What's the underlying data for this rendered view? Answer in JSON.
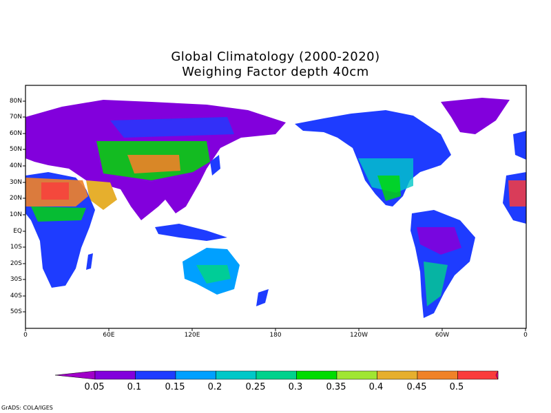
{
  "title_line1": "Global Climatology (2000-2020)",
  "title_line2": "Weighing Factor depth 40cm",
  "credit": "GrADS: COLA/IGES",
  "lat_labels": [
    "80N",
    "70N",
    "60N",
    "50N",
    "40N",
    "30N",
    "20N",
    "10N",
    "EQ",
    "10S",
    "20S",
    "30S",
    "40S",
    "50S"
  ],
  "lon_labels": [
    "0",
    "60E",
    "120E",
    "180",
    "120W",
    "60W",
    "0"
  ],
  "colorbar": {
    "labels": [
      "0.05",
      "0.1",
      "0.15",
      "0.2",
      "0.25",
      "0.3",
      "0.35",
      "0.4",
      "0.45",
      "0.5"
    ],
    "colors": [
      "#a000c8",
      "#8200dc",
      "#1e3cff",
      "#00a0ff",
      "#00c8c8",
      "#00d28c",
      "#00dc00",
      "#a0e632",
      "#e6af2d",
      "#f08228",
      "#fa3c3c",
      "#f00082"
    ]
  },
  "chart_data": {
    "type": "heatmap",
    "title": "Global Climatology (2000-2020)",
    "subtitle": "Weighing Factor depth 40cm",
    "variable": "Weighing Factor depth 40cm",
    "lon_range": [
      "0",
      "0"
    ],
    "lat_range": [
      "50S",
      "80N"
    ],
    "color_levels": [
      0.05,
      0.1,
      0.15,
      0.2,
      0.25,
      0.3,
      0.35,
      0.4,
      0.45,
      0.5
    ],
    "grid": false
  }
}
